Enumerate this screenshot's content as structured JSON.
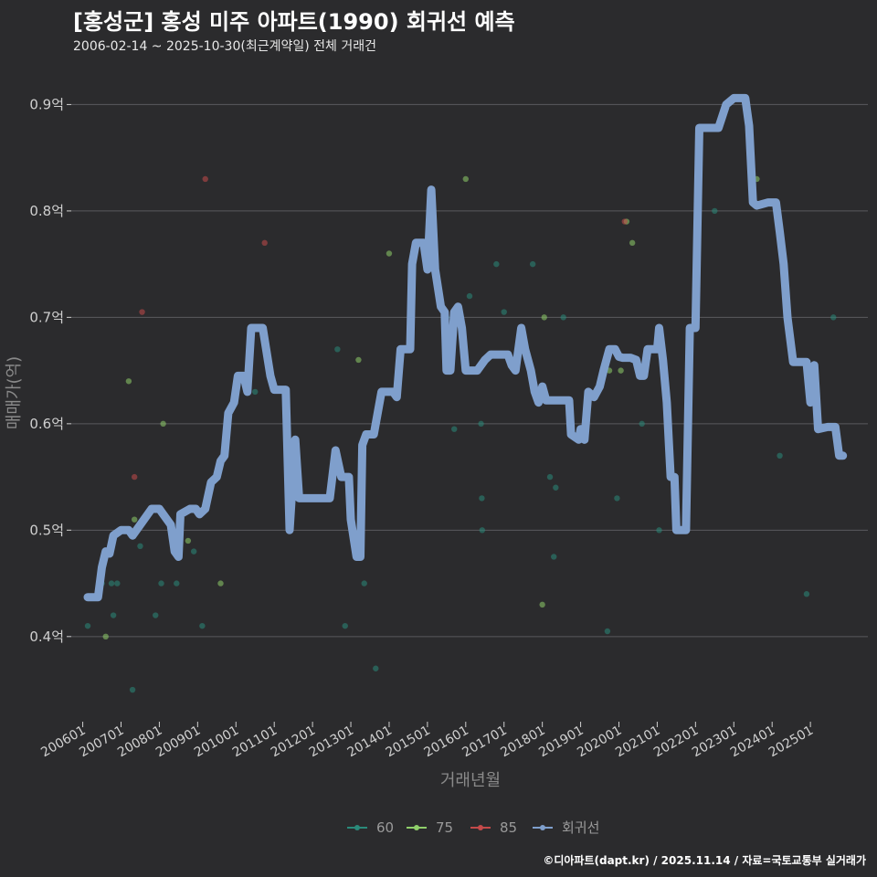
{
  "header": {
    "title": "[홍성군] 홍성 미주 아파트(1990) 회귀선 예측",
    "subtitle": "2006-02-14 ~ 2025-10-30(최근계약일) 전체 거래건"
  },
  "caption": "©디아파트(dapt.kr) / 2025.11.14 / 자료=국토교통부 실거래가",
  "colors": {
    "background": "#2b2b2d",
    "grid": "#5a5a5e",
    "s60": "#2a8a7a",
    "s75": "#8fcf6a",
    "s85": "#c44a4a",
    "regression": "#7f9fcc"
  },
  "chart_data": {
    "type": "scatter",
    "title": "[홍성군] 홍성 미주 아파트(1990) 회귀선 예측",
    "xlabel": "거래년월",
    "ylabel": "매매가(억)",
    "xlim": [
      2005.7,
      2026.5
    ],
    "ylim": [
      0.32,
      0.945
    ],
    "yticks": [
      {
        "value": 0.4,
        "label": "0.4억"
      },
      {
        "value": 0.5,
        "label": "0.5억"
      },
      {
        "value": 0.6,
        "label": "0.6억"
      },
      {
        "value": 0.7,
        "label": "0.7억"
      },
      {
        "value": 0.8,
        "label": "0.8억"
      },
      {
        "value": 0.9,
        "label": "0.9억"
      }
    ],
    "xticks": [
      {
        "value": 2006.0,
        "label": "200601"
      },
      {
        "value": 2007.0,
        "label": "200701"
      },
      {
        "value": 2008.0,
        "label": "200801"
      },
      {
        "value": 2009.0,
        "label": "200901"
      },
      {
        "value": 2010.0,
        "label": "201001"
      },
      {
        "value": 2011.0,
        "label": "201101"
      },
      {
        "value": 2012.0,
        "label": "201201"
      },
      {
        "value": 2013.0,
        "label": "201301"
      },
      {
        "value": 2014.0,
        "label": "201401"
      },
      {
        "value": 2015.0,
        "label": "201501"
      },
      {
        "value": 2016.0,
        "label": "201601"
      },
      {
        "value": 2017.0,
        "label": "201701"
      },
      {
        "value": 2018.0,
        "label": "201801"
      },
      {
        "value": 2019.0,
        "label": "201901"
      },
      {
        "value": 2020.0,
        "label": "202001"
      },
      {
        "value": 2021.0,
        "label": "202101"
      },
      {
        "value": 2022.0,
        "label": "202201"
      },
      {
        "value": 2023.0,
        "label": "202301"
      },
      {
        "value": 2024.0,
        "label": "202401"
      },
      {
        "value": 2025.0,
        "label": "202501"
      }
    ],
    "legend": {
      "placement": "bottom",
      "entries": [
        {
          "key": "s60",
          "label": "60"
        },
        {
          "key": "s75",
          "label": "75"
        },
        {
          "key": "s85",
          "label": "85"
        },
        {
          "key": "regression",
          "label": "회귀선"
        }
      ]
    },
    "series": [
      {
        "name": "60",
        "colorKey": "s60",
        "points": [
          [
            2006.13,
            0.41
          ],
          [
            2006.5,
            0.45
          ],
          [
            2006.75,
            0.45
          ],
          [
            2006.9,
            0.45
          ],
          [
            2006.8,
            0.42
          ],
          [
            2007.3,
            0.35
          ],
          [
            2007.5,
            0.485
          ],
          [
            2007.9,
            0.42
          ],
          [
            2008.05,
            0.45
          ],
          [
            2008.45,
            0.45
          ],
          [
            2008.9,
            0.48
          ],
          [
            2009.12,
            0.41
          ],
          [
            2010.5,
            0.63
          ],
          [
            2012.65,
            0.67
          ],
          [
            2012.85,
            0.41
          ],
          [
            2013.35,
            0.45
          ],
          [
            2013.65,
            0.37
          ],
          [
            2015.5,
            0.7
          ],
          [
            2015.7,
            0.595
          ],
          [
            2016.1,
            0.72
          ],
          [
            2016.2,
            0.65
          ],
          [
            2016.4,
            0.6
          ],
          [
            2016.42,
            0.53
          ],
          [
            2016.43,
            0.5
          ],
          [
            2016.8,
            0.75
          ],
          [
            2017.0,
            0.705
          ],
          [
            2017.75,
            0.75
          ],
          [
            2018.2,
            0.55
          ],
          [
            2018.35,
            0.54
          ],
          [
            2018.3,
            0.475
          ],
          [
            2018.55,
            0.7
          ],
          [
            2019.7,
            0.405
          ],
          [
            2019.95,
            0.53
          ],
          [
            2020.6,
            0.6
          ],
          [
            2021.05,
            0.5
          ],
          [
            2022.5,
            0.8
          ],
          [
            2024.2,
            0.57
          ],
          [
            2024.9,
            0.44
          ],
          [
            2025.6,
            0.7
          ]
        ]
      },
      {
        "name": "75",
        "colorKey": "s75",
        "points": [
          [
            2006.6,
            0.4
          ],
          [
            2007.2,
            0.64
          ],
          [
            2007.35,
            0.51
          ],
          [
            2008.1,
            0.6
          ],
          [
            2008.75,
            0.49
          ],
          [
            2009.6,
            0.45
          ],
          [
            2013.2,
            0.66
          ],
          [
            2014.0,
            0.76
          ],
          [
            2016.0,
            0.83
          ],
          [
            2018.0,
            0.43
          ],
          [
            2018.05,
            0.7
          ],
          [
            2019.75,
            0.65
          ],
          [
            2020.05,
            0.65
          ],
          [
            2020.2,
            0.79
          ],
          [
            2020.35,
            0.77
          ],
          [
            2023.6,
            0.83
          ]
        ]
      },
      {
        "name": "85",
        "colorKey": "s85",
        "points": [
          [
            2007.35,
            0.55
          ],
          [
            2007.55,
            0.705
          ],
          [
            2009.2,
            0.83
          ],
          [
            2010.75,
            0.77
          ],
          [
            2020.15,
            0.79
          ]
        ]
      }
    ],
    "regression": {
      "name": "회귀선",
      "colorKey": "regression",
      "points": [
        [
          2006.13,
          0.437
        ],
        [
          2006.25,
          0.437
        ],
        [
          2006.4,
          0.437
        ],
        [
          2006.5,
          0.465
        ],
        [
          2006.6,
          0.48
        ],
        [
          2006.7,
          0.478
        ],
        [
          2006.8,
          0.495
        ],
        [
          2007.0,
          0.5
        ],
        [
          2007.2,
          0.5
        ],
        [
          2007.3,
          0.495
        ],
        [
          2007.5,
          0.505
        ],
        [
          2007.7,
          0.515
        ],
        [
          2007.8,
          0.52
        ],
        [
          2008.0,
          0.52
        ],
        [
          2008.1,
          0.515
        ],
        [
          2008.3,
          0.505
        ],
        [
          2008.4,
          0.48
        ],
        [
          2008.5,
          0.475
        ],
        [
          2008.55,
          0.515
        ],
        [
          2008.8,
          0.52
        ],
        [
          2008.95,
          0.52
        ],
        [
          2009.05,
          0.515
        ],
        [
          2009.2,
          0.52
        ],
        [
          2009.35,
          0.545
        ],
        [
          2009.5,
          0.55
        ],
        [
          2009.6,
          0.565
        ],
        [
          2009.7,
          0.57
        ],
        [
          2009.8,
          0.61
        ],
        [
          2009.95,
          0.62
        ],
        [
          2010.05,
          0.645
        ],
        [
          2010.2,
          0.645
        ],
        [
          2010.3,
          0.63
        ],
        [
          2010.4,
          0.69
        ],
        [
          2010.7,
          0.69
        ],
        [
          2010.9,
          0.645
        ],
        [
          2011.0,
          0.632
        ],
        [
          2011.3,
          0.632
        ],
        [
          2011.4,
          0.5
        ],
        [
          2011.55,
          0.585
        ],
        [
          2011.65,
          0.53
        ],
        [
          2012.0,
          0.53
        ],
        [
          2012.3,
          0.53
        ],
        [
          2012.45,
          0.53
        ],
        [
          2012.6,
          0.575
        ],
        [
          2012.75,
          0.55
        ],
        [
          2012.95,
          0.55
        ],
        [
          2013.0,
          0.51
        ],
        [
          2013.15,
          0.475
        ],
        [
          2013.25,
          0.475
        ],
        [
          2013.3,
          0.58
        ],
        [
          2013.4,
          0.59
        ],
        [
          2013.6,
          0.59
        ],
        [
          2013.8,
          0.63
        ],
        [
          2014.1,
          0.63
        ],
        [
          2014.2,
          0.625
        ],
        [
          2014.3,
          0.67
        ],
        [
          2014.55,
          0.67
        ],
        [
          2014.6,
          0.75
        ],
        [
          2014.7,
          0.77
        ],
        [
          2014.9,
          0.77
        ],
        [
          2015.0,
          0.745
        ],
        [
          2015.1,
          0.82
        ],
        [
          2015.2,
          0.745
        ],
        [
          2015.35,
          0.71
        ],
        [
          2015.45,
          0.705
        ],
        [
          2015.5,
          0.65
        ],
        [
          2015.6,
          0.65
        ],
        [
          2015.7,
          0.705
        ],
        [
          2015.8,
          0.71
        ],
        [
          2015.9,
          0.69
        ],
        [
          2016.0,
          0.65
        ],
        [
          2016.1,
          0.65
        ],
        [
          2016.3,
          0.65
        ],
        [
          2016.5,
          0.66
        ],
        [
          2016.65,
          0.665
        ],
        [
          2016.85,
          0.665
        ],
        [
          2017.0,
          0.665
        ],
        [
          2017.1,
          0.665
        ],
        [
          2017.2,
          0.655
        ],
        [
          2017.3,
          0.65
        ],
        [
          2017.45,
          0.69
        ],
        [
          2017.55,
          0.67
        ],
        [
          2017.7,
          0.65
        ],
        [
          2017.8,
          0.63
        ],
        [
          2017.9,
          0.62
        ],
        [
          2018.0,
          0.635
        ],
        [
          2018.1,
          0.622
        ],
        [
          2018.5,
          0.622
        ],
        [
          2018.7,
          0.622
        ],
        [
          2018.75,
          0.59
        ],
        [
          2018.95,
          0.585
        ],
        [
          2019.0,
          0.595
        ],
        [
          2019.1,
          0.585
        ],
        [
          2019.2,
          0.63
        ],
        [
          2019.35,
          0.625
        ],
        [
          2019.5,
          0.635
        ],
        [
          2019.6,
          0.65
        ],
        [
          2019.75,
          0.67
        ],
        [
          2019.9,
          0.67
        ],
        [
          2020.0,
          0.663
        ],
        [
          2020.1,
          0.662
        ],
        [
          2020.3,
          0.662
        ],
        [
          2020.45,
          0.66
        ],
        [
          2020.55,
          0.645
        ],
        [
          2020.65,
          0.645
        ],
        [
          2020.75,
          0.67
        ],
        [
          2020.85,
          0.67
        ],
        [
          2021.0,
          0.67
        ],
        [
          2021.05,
          0.69
        ],
        [
          2021.15,
          0.66
        ],
        [
          2021.25,
          0.62
        ],
        [
          2021.35,
          0.55
        ],
        [
          2021.45,
          0.55
        ],
        [
          2021.5,
          0.5
        ],
        [
          2021.75,
          0.5
        ],
        [
          2021.85,
          0.69
        ],
        [
          2021.95,
          0.69
        ],
        [
          2022.0,
          0.69
        ],
        [
          2022.1,
          0.878
        ],
        [
          2022.3,
          0.878
        ],
        [
          2022.6,
          0.878
        ],
        [
          2022.8,
          0.9
        ],
        [
          2023.0,
          0.906
        ],
        [
          2023.3,
          0.906
        ],
        [
          2023.4,
          0.88
        ],
        [
          2023.5,
          0.808
        ],
        [
          2023.6,
          0.805
        ],
        [
          2023.9,
          0.808
        ],
        [
          2024.1,
          0.808
        ],
        [
          2024.2,
          0.78
        ],
        [
          2024.3,
          0.75
        ],
        [
          2024.4,
          0.7
        ],
        [
          2024.55,
          0.658
        ],
        [
          2024.75,
          0.658
        ],
        [
          2024.9,
          0.658
        ],
        [
          2025.0,
          0.62
        ],
        [
          2025.1,
          0.655
        ],
        [
          2025.2,
          0.595
        ],
        [
          2025.45,
          0.597
        ],
        [
          2025.65,
          0.597
        ],
        [
          2025.75,
          0.57
        ],
        [
          2025.85,
          0.57
        ]
      ]
    }
  }
}
